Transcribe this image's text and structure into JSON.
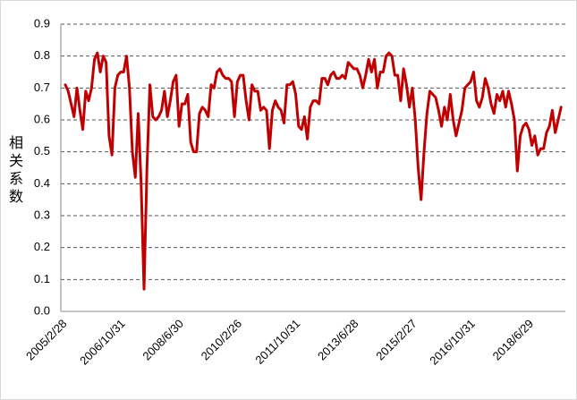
{
  "chart_data": {
    "type": "line",
    "y_label": "相关系数",
    "categories": [
      "2005/2/28",
      null,
      null,
      null,
      null,
      null,
      null,
      null,
      null,
      null,
      null,
      null,
      null,
      null,
      null,
      null,
      null,
      null,
      null,
      null,
      "2006/10/31",
      null,
      null,
      null,
      null,
      null,
      null,
      null,
      null,
      null,
      null,
      null,
      null,
      null,
      null,
      null,
      null,
      null,
      null,
      null,
      "2008/6/30",
      null,
      null,
      null,
      null,
      null,
      null,
      null,
      null,
      null,
      null,
      null,
      null,
      null,
      null,
      null,
      null,
      null,
      null,
      null,
      "2010/2/26",
      null,
      null,
      null,
      null,
      null,
      null,
      null,
      null,
      null,
      null,
      null,
      null,
      null,
      null,
      null,
      null,
      null,
      null,
      null,
      "2011/10/31",
      null,
      null,
      null,
      null,
      null,
      null,
      null,
      null,
      null,
      null,
      null,
      null,
      null,
      null,
      null,
      null,
      null,
      null,
      null,
      "2013/6/28",
      null,
      null,
      null,
      null,
      null,
      null,
      null,
      null,
      null,
      null,
      null,
      null,
      null,
      null,
      null,
      null,
      null,
      null,
      null,
      "2015/2/27",
      null,
      null,
      null,
      null,
      null,
      null,
      null,
      null,
      null,
      null,
      null,
      null,
      null,
      null,
      null,
      null,
      null,
      null,
      null,
      "2016/10/31",
      null,
      null,
      null,
      null,
      null,
      null,
      null,
      null,
      null,
      null,
      null,
      null,
      null,
      null,
      null,
      null,
      null,
      null,
      null,
      "2018/6/29",
      null,
      null,
      null,
      null,
      null,
      null,
      null,
      null,
      null,
      null
    ],
    "values": [
      0.71,
      0.69,
      0.65,
      0.61,
      0.7,
      0.63,
      0.57,
      0.69,
      0.66,
      0.7,
      0.79,
      0.81,
      0.75,
      0.8,
      0.78,
      0.55,
      0.49,
      0.7,
      0.74,
      0.75,
      0.75,
      0.8,
      0.7,
      0.5,
      0.42,
      0.62,
      0.4,
      0.07,
      0.45,
      0.71,
      0.61,
      0.6,
      0.61,
      0.63,
      0.69,
      0.61,
      0.66,
      0.72,
      0.74,
      0.58,
      0.65,
      0.65,
      0.68,
      0.53,
      0.5,
      0.5,
      0.62,
      0.64,
      0.63,
      0.61,
      0.71,
      0.7,
      0.75,
      0.76,
      0.74,
      0.73,
      0.73,
      0.72,
      0.61,
      0.72,
      0.74,
      0.74,
      0.66,
      0.6,
      0.71,
      0.69,
      0.69,
      0.63,
      0.64,
      0.63,
      0.51,
      0.63,
      0.66,
      0.64,
      0.63,
      0.59,
      0.71,
      0.71,
      0.72,
      0.68,
      0.58,
      0.57,
      0.61,
      0.54,
      0.64,
      0.66,
      0.66,
      0.65,
      0.73,
      0.73,
      0.71,
      0.74,
      0.75,
      0.73,
      0.73,
      0.74,
      0.73,
      0.78,
      0.77,
      0.76,
      0.76,
      0.74,
      0.7,
      0.74,
      0.79,
      0.75,
      0.79,
      0.7,
      0.75,
      0.75,
      0.8,
      0.81,
      0.8,
      0.74,
      0.74,
      0.66,
      0.76,
      0.71,
      0.64,
      0.7,
      0.6,
      0.45,
      0.35,
      0.5,
      0.62,
      0.69,
      0.68,
      0.67,
      0.63,
      0.58,
      0.64,
      0.6,
      0.68,
      0.6,
      0.55,
      0.59,
      0.63,
      0.7,
      0.71,
      0.72,
      0.75,
      0.66,
      0.64,
      0.67,
      0.73,
      0.7,
      0.65,
      0.62,
      0.68,
      0.66,
      0.69,
      0.64,
      0.69,
      0.65,
      0.6,
      0.44,
      0.55,
      0.58,
      0.59,
      0.57,
      0.52,
      0.55,
      0.49,
      0.51,
      0.51,
      0.56,
      0.58,
      0.63,
      0.56,
      0.6,
      0.64
    ],
    "color": "#c00000",
    "ylim": [
      0,
      0.9
    ],
    "yticks": [
      {
        "value": 0,
        "label": "0.0"
      },
      0.1,
      0.2,
      0.3,
      0.4,
      0.5,
      0.6,
      0.7,
      0.8,
      0.9
    ],
    "grid": true
  }
}
